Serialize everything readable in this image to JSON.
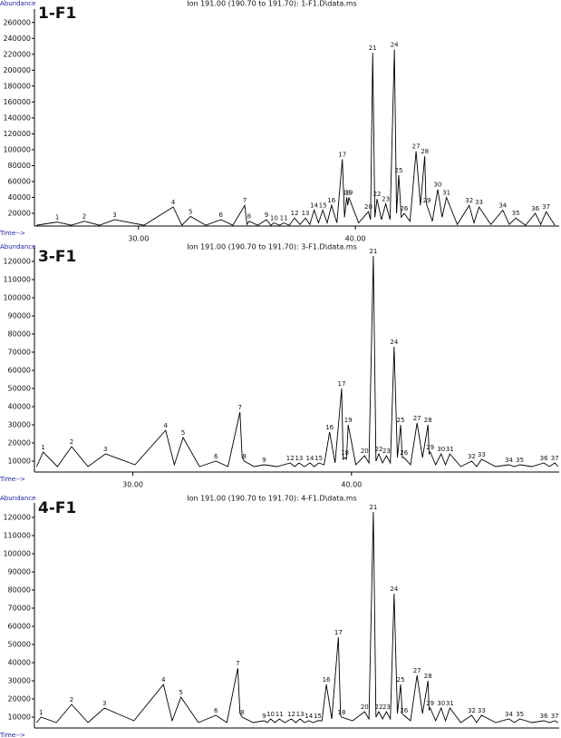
{
  "chart_data": [
    {
      "type": "line",
      "sample": "1-F1",
      "title": "Ion 191.00 (190.70 to 191.70): 1-F1.D\\data.ms",
      "y_label": "Abundance",
      "x_label": "Time-->",
      "color": "#000000",
      "xlim": [
        25.2,
        49.4
      ],
      "xticks": [
        {
          "value": 30,
          "label": "30.00"
        },
        {
          "value": 40,
          "label": "40.00"
        }
      ],
      "ylim": [
        4000,
        270000
      ],
      "yticks": [
        20000,
        40000,
        60000,
        80000,
        100000,
        120000,
        140000,
        160000,
        180000,
        200000,
        220000,
        240000,
        260000
      ],
      "x": [
        25.3,
        26.25,
        26.9,
        27.5,
        28.2,
        28.9,
        30.25,
        31.6,
        32.0,
        32.4,
        33.1,
        33.8,
        34.35,
        34.9,
        35.0,
        35.1,
        35.5,
        35.9,
        36.1,
        36.25,
        36.5,
        36.7,
        36.95,
        37.2,
        37.45,
        37.7,
        37.9,
        38.1,
        38.3,
        38.5,
        38.7,
        38.9,
        39.15,
        39.4,
        39.5,
        39.6,
        39.65,
        39.7,
        40.15,
        40.6,
        40.7,
        40.8,
        40.9,
        41.0,
        41.2,
        41.4,
        41.6,
        41.8,
        41.9,
        42.0,
        42.12,
        42.25,
        42.52,
        42.8,
        43.0,
        43.2,
        43.25,
        43.3,
        43.55,
        43.8,
        44.0,
        44.2,
        44.7,
        45.25,
        45.47,
        45.7,
        46.25,
        46.8,
        47.1,
        47.4,
        47.85,
        48.3,
        48.55,
        48.8,
        49.2
      ],
      "values": [
        5000,
        9000,
        5000,
        10000,
        5000,
        12000,
        5000,
        28000,
        5000,
        16000,
        5000,
        12000,
        5000,
        30000,
        6000,
        10000,
        5000,
        12000,
        5000,
        8000,
        5000,
        8000,
        5000,
        14000,
        6000,
        14000,
        6000,
        24000,
        8000,
        24000,
        8000,
        30000,
        8000,
        88000,
        15000,
        40000,
        30000,
        40000,
        8000,
        22000,
        12000,
        222000,
        15000,
        38000,
        12000,
        32000,
        12000,
        226000,
        20000,
        68000,
        15000,
        20000,
        10000,
        98000,
        30000,
        92000,
        40000,
        30000,
        10000,
        50000,
        15000,
        40000,
        6000,
        30000,
        8000,
        28000,
        6000,
        24000,
        6000,
        14000,
        5000,
        20000,
        6000,
        22000,
        5000
      ],
      "peak_labels": [
        null,
        "1",
        null,
        "2",
        null,
        "3",
        null,
        "4",
        null,
        "5",
        null,
        "6",
        null,
        "7",
        null,
        "8",
        null,
        "9",
        null,
        "10",
        null,
        "11",
        null,
        "12",
        null,
        "13",
        null,
        "14",
        null,
        "15",
        null,
        "16",
        null,
        "17",
        null,
        "18",
        null,
        "19",
        null,
        "20",
        null,
        "21",
        null,
        "22",
        null,
        "23",
        null,
        "24",
        null,
        "25",
        null,
        "26",
        null,
        "27",
        null,
        "28",
        null,
        "29",
        null,
        "30",
        null,
        "31",
        null,
        "32",
        null,
        "33",
        null,
        "34",
        null,
        "35",
        null,
        "36",
        null,
        "37",
        null
      ]
    },
    {
      "type": "line",
      "sample": "3-F1",
      "title": "Ion 191.00 (190.70 to 191.70): 3-F1.D\\data.ms",
      "y_label": "Abundance",
      "x_label": "Time-->",
      "color": "#000000",
      "xlim": [
        25.5,
        49.5
      ],
      "xticks": [
        {
          "value": 30,
          "label": "30.00"
        },
        {
          "value": 40,
          "label": "40.00"
        }
      ],
      "ylim": [
        4000,
        125000
      ],
      "yticks": [
        10000,
        20000,
        30000,
        40000,
        50000,
        60000,
        70000,
        80000,
        90000,
        100000,
        110000,
        120000
      ],
      "x": [
        25.6,
        25.9,
        26.55,
        27.2,
        27.95,
        28.75,
        30.1,
        31.5,
        31.9,
        32.3,
        33.05,
        33.8,
        34.35,
        34.9,
        35.0,
        35.1,
        35.55,
        36.0,
        36.6,
        37.2,
        37.4,
        37.6,
        37.85,
        38.1,
        38.3,
        38.5,
        38.75,
        39.0,
        39.25,
        39.55,
        39.62,
        39.7,
        39.77,
        39.85,
        40.2,
        40.6,
        40.8,
        41.0,
        41.12,
        41.25,
        41.42,
        41.6,
        41.78,
        41.95,
        42.1,
        42.25,
        42.32,
        42.4,
        42.7,
        43.0,
        43.25,
        43.5,
        43.55,
        43.6,
        43.85,
        44.1,
        44.3,
        44.5,
        45.0,
        45.5,
        45.72,
        45.95,
        46.6,
        47.2,
        47.45,
        47.7,
        48.25,
        48.8,
        49.05,
        49.3,
        49.45
      ],
      "values": [
        7000,
        15000,
        7000,
        18000,
        7000,
        14000,
        8000,
        27000,
        8000,
        23000,
        7000,
        10000,
        7000,
        37000,
        12000,
        10000,
        7000,
        8000,
        7000,
        9000,
        7000,
        9000,
        7000,
        9000,
        7000,
        9000,
        8000,
        26000,
        9000,
        50000,
        11000,
        12000,
        11000,
        30000,
        8000,
        13000,
        9000,
        123000,
        10000,
        14000,
        9000,
        13000,
        9000,
        73000,
        12000,
        30000,
        12000,
        12000,
        8000,
        31000,
        12000,
        30000,
        14000,
        15000,
        8000,
        14000,
        8000,
        14000,
        7000,
        10000,
        7000,
        11000,
        7000,
        8000,
        7000,
        8000,
        7000,
        9000,
        7000,
        9000,
        7000
      ],
      "peak_labels": [
        null,
        "1",
        null,
        "2",
        null,
        "3",
        null,
        "4",
        null,
        "5",
        null,
        "6",
        null,
        "7",
        null,
        "8",
        null,
        "9",
        null,
        "12",
        null,
        "13",
        null,
        "14",
        null,
        "15",
        null,
        "16",
        null,
        "17",
        null,
        "18",
        null,
        "19",
        null,
        "20",
        null,
        "21",
        null,
        "22",
        null,
        "23",
        null,
        "24",
        null,
        "25",
        null,
        "26",
        null,
        "27",
        null,
        "28",
        null,
        "29",
        null,
        "30",
        null,
        "31",
        null,
        "32",
        null,
        "33",
        null,
        "34",
        null,
        "35",
        null,
        "36",
        null,
        "37",
        null
      ]
    },
    {
      "type": "line",
      "sample": "4-F1",
      "title": "Ion 191.00 (190.70 to 191.70): 4-F1.D\\data.ms",
      "y_label": "Abundance",
      "x_label": "Time-->",
      "color": "#000000",
      "xlim": [
        25.5,
        49.5
      ],
      "ylim": [
        4000,
        125000
      ],
      "yticks": [
        10000,
        20000,
        30000,
        40000,
        50000,
        60000,
        70000,
        80000,
        90000,
        100000,
        110000,
        120000
      ],
      "x": [
        25.6,
        25.8,
        26.5,
        27.2,
        27.95,
        28.7,
        30.05,
        31.4,
        31.8,
        32.2,
        33.0,
        33.8,
        34.3,
        34.8,
        34.9,
        35.0,
        35.5,
        36.0,
        36.15,
        36.3,
        36.5,
        36.7,
        36.95,
        37.25,
        37.45,
        37.65,
        37.85,
        38.05,
        38.25,
        38.45,
        38.65,
        38.85,
        39.1,
        39.4,
        39.5,
        39.55,
        40.05,
        40.6,
        40.8,
        41.0,
        41.12,
        41.25,
        41.42,
        41.6,
        41.78,
        41.95,
        42.1,
        42.25,
        42.32,
        42.4,
        42.7,
        43.0,
        43.25,
        43.5,
        43.55,
        43.6,
        43.85,
        44.1,
        44.3,
        44.5,
        45.0,
        45.5,
        45.72,
        45.95,
        46.6,
        47.2,
        47.45,
        47.7,
        48.25,
        48.8,
        49.05,
        49.3,
        49.45
      ],
      "values": [
        7000,
        10000,
        7000,
        17000,
        7000,
        15000,
        8000,
        28000,
        8000,
        21000,
        7000,
        11000,
        7000,
        37000,
        12000,
        10000,
        7000,
        8000,
        7000,
        9000,
        7000,
        9000,
        7000,
        9000,
        7000,
        9000,
        7000,
        8000,
        7000,
        8000,
        8000,
        28000,
        9000,
        54000,
        11000,
        10000,
        8000,
        13000,
        9000,
        123000,
        10000,
        13000,
        9000,
        13000,
        9000,
        78000,
        12000,
        28000,
        12000,
        11000,
        8000,
        33000,
        12000,
        30000,
        14000,
        15000,
        8000,
        15000,
        8000,
        15000,
        7000,
        11000,
        7000,
        11000,
        7000,
        9000,
        7000,
        9000,
        7000,
        8000,
        7000,
        8000,
        7000
      ],
      "peak_labels": [
        null,
        "1",
        null,
        "2",
        null,
        "3",
        null,
        "4",
        null,
        "5",
        null,
        "6",
        null,
        "7",
        null,
        "8",
        null,
        "9",
        null,
        "10",
        null,
        "11",
        null,
        "12",
        null,
        "13",
        null,
        "14",
        null,
        "15",
        null,
        "16",
        null,
        "17",
        null,
        "18",
        null,
        "20",
        null,
        "21",
        null,
        "22",
        null,
        "23",
        null,
        "24",
        null,
        "25",
        null,
        "26",
        null,
        "27",
        null,
        "28",
        null,
        "29",
        null,
        "30",
        null,
        "31",
        null,
        "32",
        null,
        "33",
        null,
        "34",
        null,
        "35",
        null,
        "36",
        null,
        "37",
        null
      ]
    }
  ]
}
